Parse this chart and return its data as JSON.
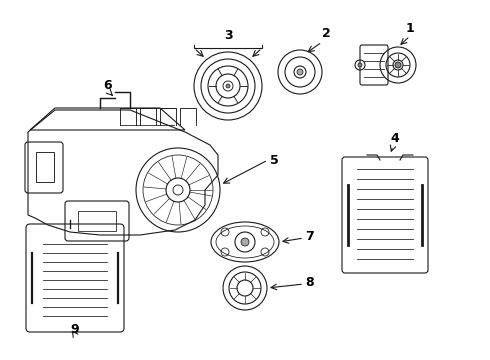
{
  "bg_color": "#ffffff",
  "lc": "#1a1a1a",
  "lw": 0.8,
  "fig_w": 4.9,
  "fig_h": 3.6,
  "dpi": 100
}
